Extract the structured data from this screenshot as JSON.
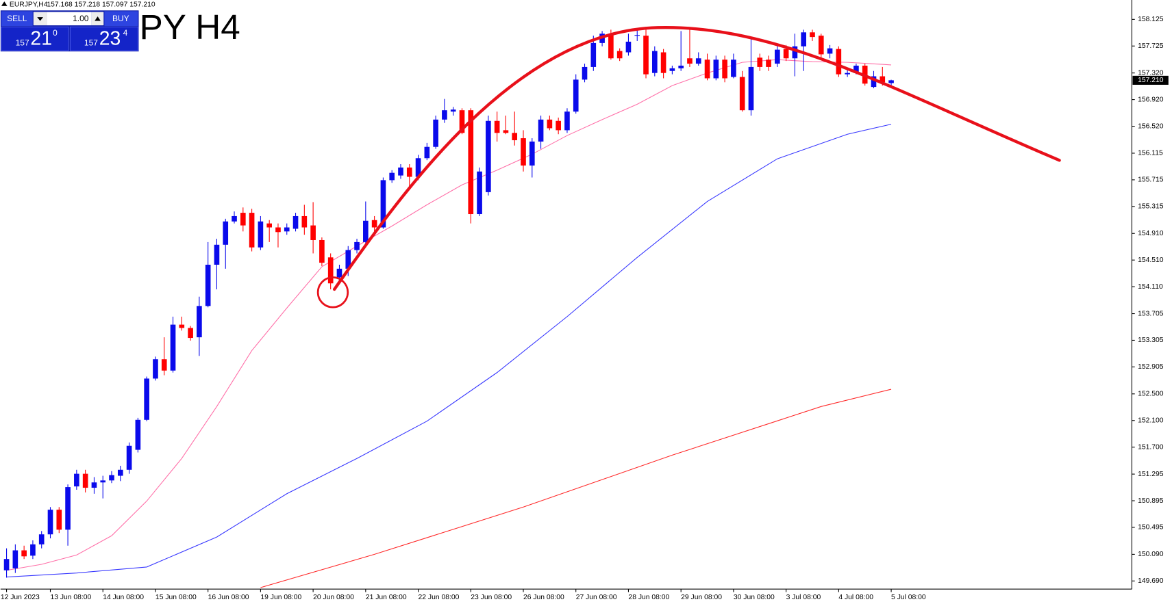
{
  "header": {
    "symbol": "EURJPY,H4",
    "ohlc": "157.168 157.218 157.097 157.210"
  },
  "watermark": "PY H4",
  "trade_panel": {
    "sell_label": "SELL",
    "buy_label": "BUY",
    "lot": "1.00",
    "sell_price": {
      "big_figure": "157",
      "pips": "21",
      "point": "0"
    },
    "buy_price": {
      "big_figure": "157",
      "pips": "23",
      "point": "4"
    }
  },
  "chart_data": {
    "type": "candlestick",
    "categories": [
      "12 Jun 2023",
      null,
      null,
      null,
      null,
      "13 Jun 08:00",
      null,
      null,
      null,
      null,
      null,
      "14 Jun 08:00",
      null,
      null,
      null,
      null,
      null,
      "15 Jun 08:00",
      null,
      null,
      null,
      null,
      null,
      "16 Jun 08:00",
      null,
      null,
      null,
      null,
      null,
      "19 Jun 08:00",
      null,
      null,
      null,
      null,
      null,
      "20 Jun 08:00",
      null,
      null,
      null,
      null,
      null,
      "21 Jun 08:00",
      null,
      null,
      null,
      null,
      null,
      "22 Jun 08:00",
      null,
      null,
      null,
      null,
      null,
      "23 Jun 08:00",
      null,
      null,
      null,
      null,
      null,
      "26 Jun 08:00",
      null,
      null,
      null,
      null,
      null,
      "27 Jun 08:00",
      null,
      null,
      null,
      null,
      null,
      "28 Jun 08:00",
      null,
      null,
      null,
      null,
      null,
      "29 Jun 08:00",
      null,
      null,
      null,
      null,
      null,
      "30 Jun 08:00",
      null,
      null,
      null,
      null,
      null,
      "3 Jul 08:00",
      null,
      null,
      null,
      null,
      null,
      "4 Jul 08:00",
      null,
      null,
      null,
      null,
      null,
      "5 Jul 08:00"
    ],
    "open": [
      149.85,
      149.88,
      150.15,
      150.07,
      150.24,
      150.39,
      150.76,
      150.46,
      151.11,
      151.3,
      151.09,
      151.17,
      151.2,
      151.27,
      151.36,
      151.66,
      152.11,
      152.73,
      153.02,
      152.85,
      153.54,
      153.49,
      153.35,
      153.82,
      154.44,
      154.74,
      155.09,
      155.22,
      155.22,
      154.7,
      155.06,
      155.0,
      154.94,
      154.98,
      155.17,
      155.03,
      154.81,
      154.55,
      154.25,
      154.38,
      154.66,
      154.78,
      155.11,
      155.0,
      155.71,
      155.78,
      155.9,
      155.76,
      156.04,
      156.21,
      156.62,
      156.74,
      156.76,
      156.76,
      155.2,
      155.53,
      156.6,
      156.46,
      156.42,
      156.34,
      155.93,
      156.29,
      156.62,
      156.6,
      156.46,
      156.74,
      157.22,
      157.41,
      157.77,
      157.91,
      157.65,
      157.63,
      157.89,
      157.88,
      157.32,
      157.63,
      157.35,
      157.39,
      157.54,
      157.46,
      157.52,
      157.24,
      157.52,
      157.26,
      157.26,
      156.76,
      157.55,
      157.52,
      157.46,
      157.68,
      157.54,
      157.72,
      157.93,
      157.88,
      157.61,
      157.68,
      157.3,
      157.32,
      157.43,
      157.11,
      157.27,
      157.168
    ],
    "high": [
      150.18,
      150.24,
      150.22,
      150.3,
      150.44,
      150.8,
      150.8,
      151.14,
      151.36,
      151.36,
      151.25,
      151.27,
      151.34,
      151.42,
      151.77,
      152.14,
      152.76,
      153.06,
      153.35,
      153.66,
      153.66,
      153.52,
      153.96,
      154.78,
      154.83,
      155.13,
      155.24,
      155.3,
      155.28,
      155.17,
      155.11,
      155.06,
      155.06,
      155.22,
      155.34,
      155.38,
      154.85,
      154.61,
      154.44,
      154.72,
      154.83,
      155.39,
      155.17,
      155.75,
      155.86,
      155.95,
      155.95,
      156.09,
      156.27,
      156.68,
      156.93,
      156.81,
      156.79,
      156.79,
      155.9,
      156.68,
      156.74,
      156.68,
      156.74,
      156.46,
      156.34,
      156.68,
      156.68,
      156.65,
      156.79,
      157.3,
      157.46,
      157.88,
      157.95,
      157.97,
      157.69,
      157.91,
      157.97,
      157.97,
      157.72,
      157.68,
      157.43,
      157.95,
      157.97,
      157.63,
      157.61,
      157.58,
      157.58,
      157.61,
      157.35,
      157.86,
      157.61,
      157.58,
      157.74,
      157.74,
      157.91,
      157.97,
      157.97,
      157.91,
      157.74,
      157.72,
      157.39,
      157.46,
      157.46,
      157.35,
      157.41,
      157.218
    ],
    "low": [
      149.74,
      149.81,
      150.02,
      150.02,
      150.18,
      150.33,
      150.41,
      150.22,
      151.06,
      151.02,
      151.0,
      150.93,
      151.16,
      151.19,
      151.3,
      151.62,
      152.09,
      152.7,
      152.78,
      152.82,
      153.45,
      153.3,
      153.07,
      153.8,
      154.07,
      154.38,
      155.06,
      154.94,
      154.64,
      154.66,
      154.78,
      154.7,
      154.89,
      154.94,
      154.89,
      154.61,
      154.42,
      154.07,
      154.18,
      154.27,
      154.61,
      154.72,
      154.94,
      154.98,
      155.67,
      155.73,
      155.62,
      155.71,
      156.01,
      156.18,
      156.57,
      156.68,
      156.4,
      155.06,
      155.17,
      155.48,
      156.29,
      156.4,
      156.23,
      155.84,
      155.75,
      156.18,
      156.46,
      156.4,
      156.42,
      156.71,
      157.18,
      157.35,
      157.72,
      157.52,
      157.5,
      157.58,
      157.8,
      157.24,
      157.27,
      157.24,
      157.3,
      157.35,
      157.41,
      157.43,
      157.21,
      157.21,
      157.18,
      157.24,
      156.74,
      156.68,
      157.35,
      157.35,
      157.41,
      157.5,
      157.27,
      157.35,
      157.8,
      157.54,
      157.54,
      157.26,
      157.26,
      157.3,
      157.13,
      157.09,
      157.13,
      157.097
    ],
    "close": [
      150.02,
      150.15,
      150.06,
      150.24,
      150.39,
      150.76,
      150.46,
      151.1,
      151.3,
      151.09,
      151.17,
      151.2,
      151.28,
      151.36,
      151.72,
      152.11,
      152.73,
      153.02,
      152.85,
      153.54,
      153.49,
      153.34,
      153.82,
      154.44,
      154.74,
      155.09,
      155.17,
      155.03,
      154.7,
      155.09,
      155.0,
      154.93,
      155.0,
      155.17,
      155.0,
      154.81,
      154.47,
      154.16,
      154.38,
      154.66,
      154.78,
      155.1,
      155.0,
      155.71,
      155.82,
      155.9,
      155.76,
      156.04,
      156.21,
      156.62,
      156.76,
      156.77,
      156.42,
      155.2,
      155.84,
      156.6,
      156.42,
      156.42,
      156.31,
      155.93,
      156.29,
      156.62,
      156.49,
      156.46,
      156.74,
      157.22,
      157.41,
      157.77,
      157.91,
      157.54,
      157.54,
      157.79,
      157.89,
      157.3,
      157.65,
      157.32,
      157.39,
      157.43,
      157.46,
      157.54,
      157.24,
      157.52,
      157.24,
      157.52,
      156.76,
      157.41,
      157.41,
      157.41,
      157.67,
      157.54,
      157.72,
      157.93,
      157.86,
      157.6,
      157.69,
      157.3,
      157.32,
      157.43,
      157.16,
      157.27,
      157.18,
      157.21
    ],
    "up_color": "#0a0aeb",
    "down_color": "#ff0000",
    "lines": [
      {
        "color": "#ff6fa8",
        "x": [
          0,
          4,
          8,
          12,
          16,
          20,
          24,
          28,
          32,
          36,
          40,
          44,
          48,
          52,
          56,
          60,
          64,
          68,
          72,
          76,
          80,
          84,
          88,
          92,
          96,
          100,
          101
        ],
        "values": [
          149.85,
          149.94,
          150.08,
          150.37,
          150.89,
          151.53,
          152.31,
          153.15,
          153.79,
          154.41,
          154.72,
          155.02,
          155.34,
          155.64,
          155.86,
          156.1,
          156.38,
          156.62,
          156.85,
          157.13,
          157.32,
          157.48,
          157.52,
          157.49,
          157.48,
          157.45,
          157.44
        ]
      },
      {
        "color": "#3838ff",
        "x": [
          0,
          8,
          16,
          24,
          32,
          40,
          48,
          56,
          64,
          72,
          80,
          88,
          96,
          101
        ],
        "values": [
          149.75,
          149.81,
          149.9,
          150.35,
          151.0,
          151.53,
          152.09,
          152.82,
          153.66,
          154.55,
          155.39,
          156.03,
          156.4,
          156.55
        ]
      },
      {
        "color": "#ff2a2a",
        "x": [
          29,
          42,
          59,
          76,
          93,
          101
        ],
        "values": [
          149.59,
          150.09,
          150.8,
          151.58,
          152.31,
          152.57
        ]
      }
    ],
    "ylim": [
      149.568,
      158.416
    ],
    "yticks": [
      158.125,
      157.725,
      {
        "value": 157.32,
        "label": "157.320"
      },
      {
        "value": 156.92,
        "label": "156.920"
      },
      {
        "value": 156.52,
        "label": "156.520"
      },
      156.115,
      155.715,
      155.315,
      {
        "value": 154.91,
        "label": "154.910"
      },
      {
        "value": 154.51,
        "label": "154.510"
      },
      {
        "value": 154.11,
        "label": "154.110"
      },
      153.705,
      153.305,
      152.905,
      {
        "value": 152.5,
        "label": "152.500"
      },
      {
        "value": 152.1,
        "label": "152.100"
      },
      {
        "value": 151.7,
        "label": "151.700"
      },
      151.295,
      150.895,
      150.495,
      {
        "value": 150.09,
        "label": "150.090"
      },
      {
        "value": 149.69,
        "label": "149.690"
      }
    ],
    "current_price": {
      "value": 157.21,
      "label": "157.210"
    }
  }
}
